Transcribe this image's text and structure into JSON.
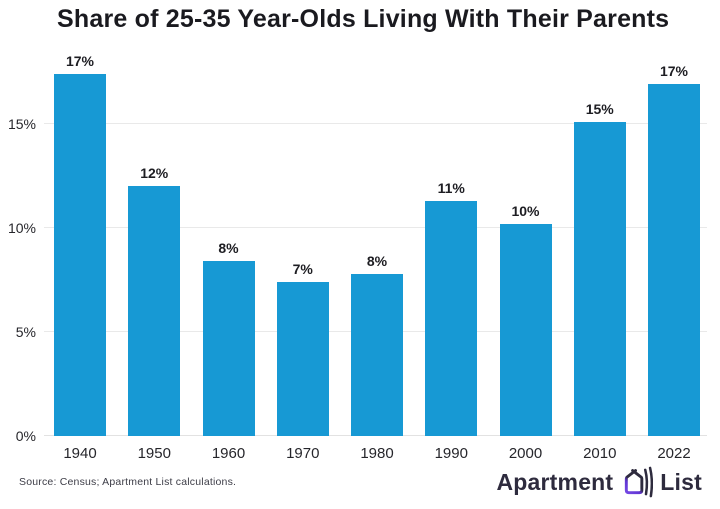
{
  "chart_data": {
    "type": "bar",
    "title": "Share of 25-35 Year-Olds Living With Their Parents",
    "categories": [
      "1940",
      "1950",
      "1960",
      "1970",
      "1980",
      "1990",
      "2000",
      "2010",
      "2022"
    ],
    "values": [
      17.4,
      12.0,
      8.4,
      7.4,
      7.8,
      11.3,
      10.2,
      15.1,
      16.9
    ],
    "value_labels": [
      "17%",
      "12%",
      "8%",
      "7%",
      "8%",
      "11%",
      "10%",
      "15%",
      "17%"
    ],
    "xlabel": "",
    "ylabel": "",
    "ylim": [
      0,
      18.2
    ],
    "yticks": [
      0,
      5,
      10,
      15
    ],
    "ytick_labels": [
      "0%",
      "5%",
      "10%",
      "15%"
    ],
    "grid": true,
    "legend": "none",
    "bar_color": "#1799D4"
  },
  "footer": {
    "source": "Source: Census; Apartment List calculations.",
    "logo": {
      "word1": "Apartment",
      "word2": "List",
      "icon": "apartment-list-house-icon"
    }
  },
  "colors": {
    "bar": "#1799D4",
    "title_text": "#1a1a1f",
    "axis_text": "#26262b",
    "gridline": "#e9e9e9",
    "source_text": "#3d3d47",
    "logo_navy": "#2e2b3e",
    "logo_purple": "#7a4ce0"
  }
}
